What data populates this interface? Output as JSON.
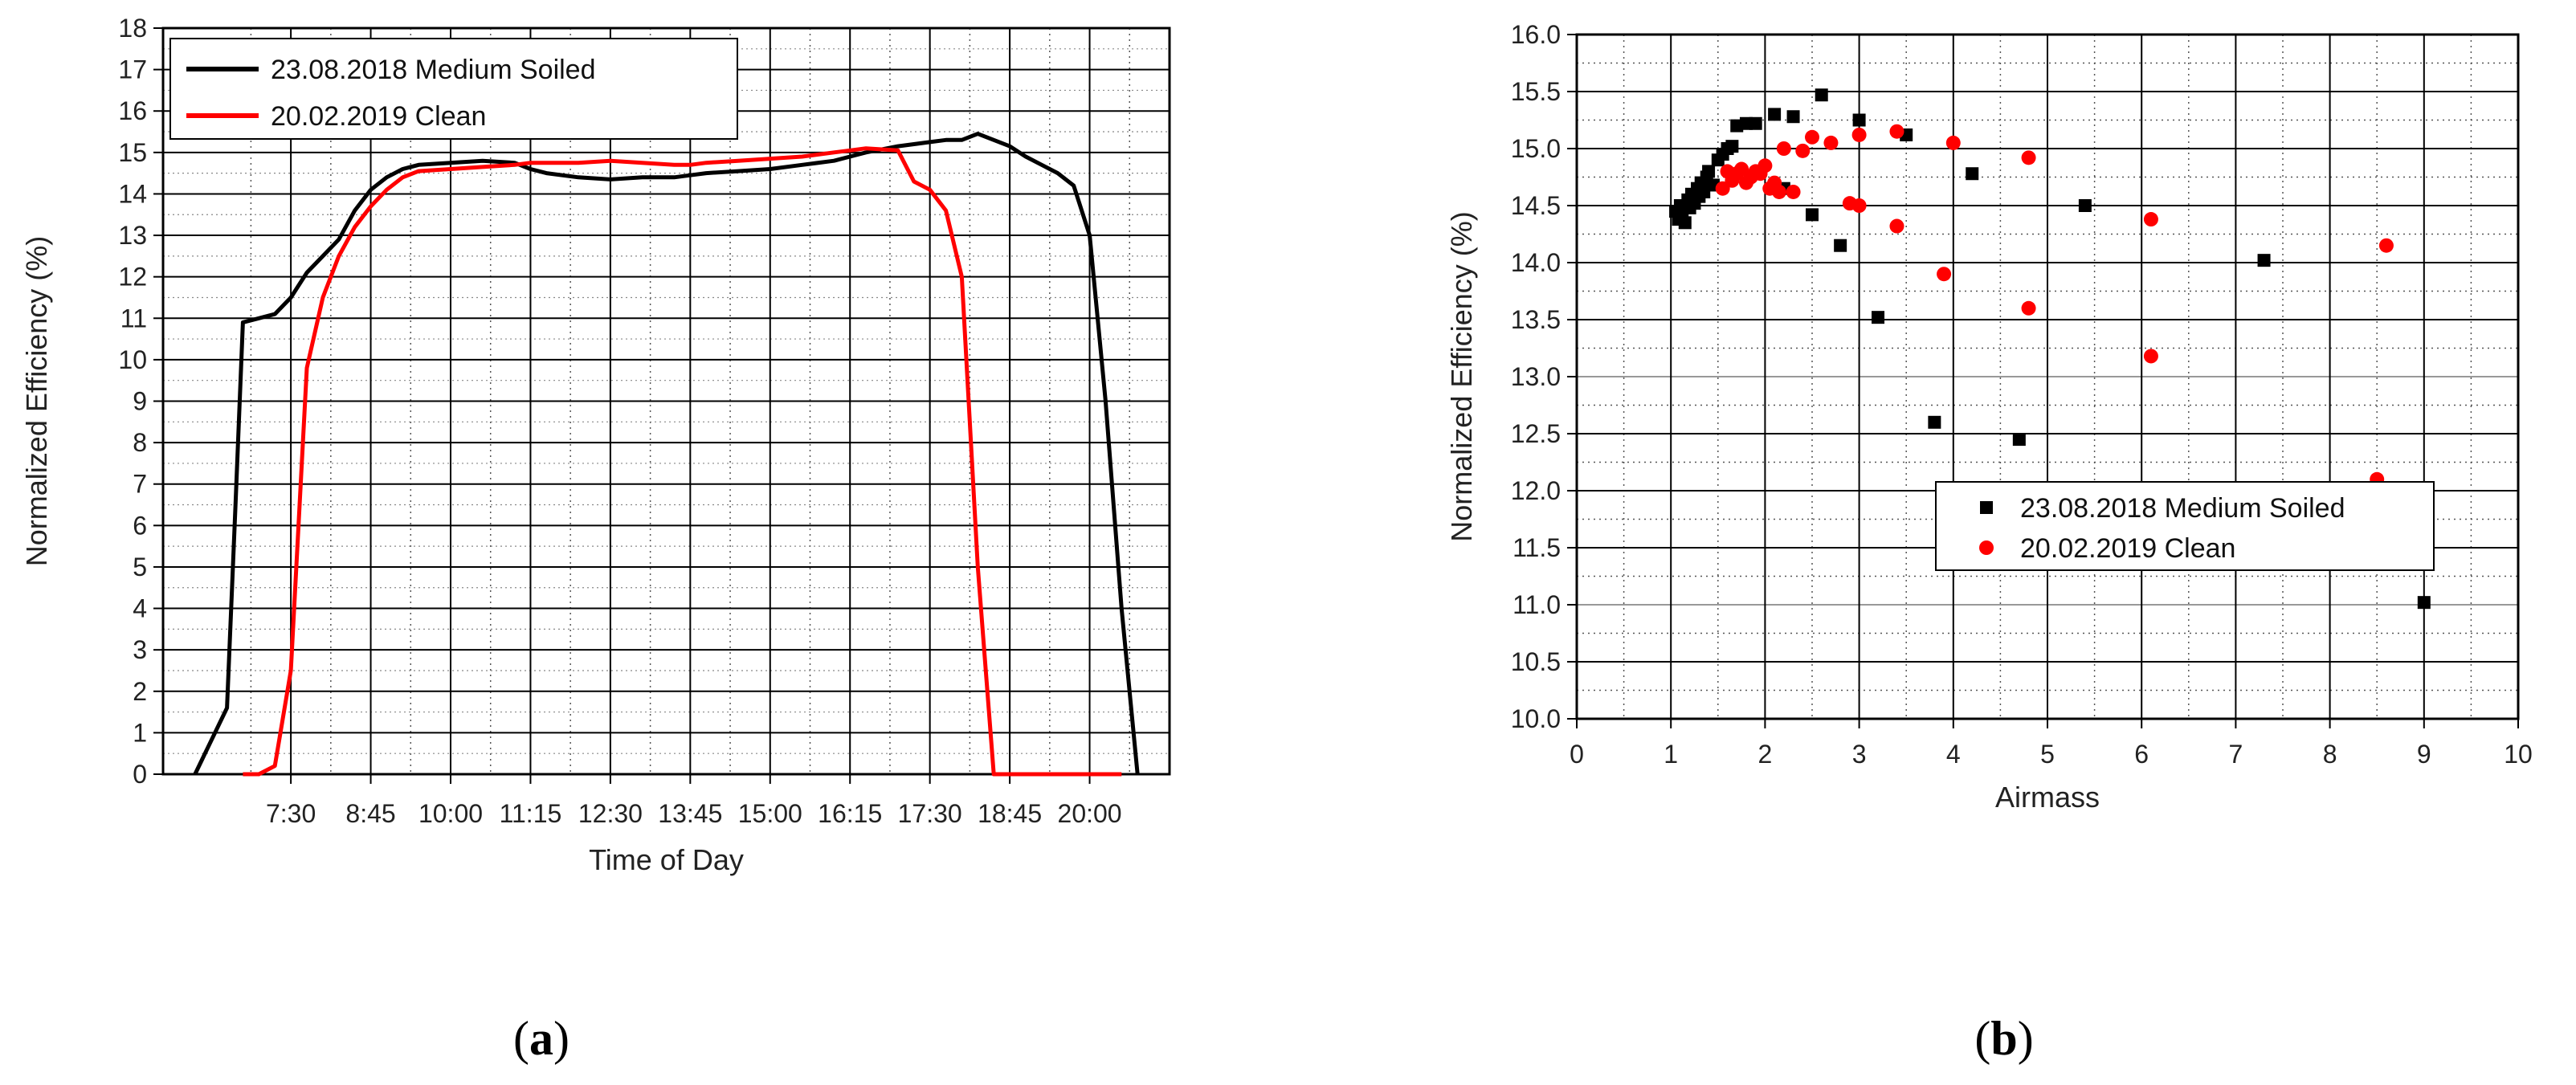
{
  "chart_data": [
    {
      "type": "line",
      "panel_label": "a",
      "xlabel": "Time of Day",
      "ylabel": "Normalized Efficiency (%)",
      "xlim": [
        "5:30",
        "21:15"
      ],
      "ylim": [
        0,
        18
      ],
      "x_ticks": [
        "7:30",
        "8:45",
        "10:00",
        "11:15",
        "12:30",
        "13:45",
        "15:00",
        "16:15",
        "17:30",
        "18:45",
        "20:00"
      ],
      "y_ticks": [
        "0",
        "1",
        "2",
        "3",
        "4",
        "5",
        "6",
        "7",
        "8",
        "9",
        "10",
        "11",
        "12",
        "13",
        "14",
        "15",
        "16",
        "17",
        "18"
      ],
      "grid": true,
      "legend_position": "top-left",
      "series": [
        {
          "name": "23.08.2018 Medium Soiled",
          "color": "#000000",
          "x": [
            "6:00",
            "6:15",
            "6:30",
            "6:38",
            "6:45",
            "7:00",
            "7:15",
            "7:30",
            "7:45",
            "8:00",
            "8:15",
            "8:30",
            "8:45",
            "9:00",
            "9:15",
            "9:30",
            "10:00",
            "10:30",
            "11:00",
            "11:15",
            "11:30",
            "12:00",
            "12:30",
            "13:00",
            "13:30",
            "13:45",
            "14:00",
            "14:30",
            "15:00",
            "15:30",
            "16:00",
            "16:15",
            "16:30",
            "17:00",
            "17:30",
            "17:45",
            "18:00",
            "18:15",
            "18:30",
            "18:45",
            "19:00",
            "19:15",
            "19:30",
            "19:45",
            "20:00",
            "20:15",
            "20:30",
            "20:45"
          ],
          "values": [
            0,
            0.8,
            1.6,
            6.5,
            10.9,
            11.0,
            11.1,
            11.5,
            12.1,
            12.5,
            12.9,
            13.6,
            14.1,
            14.4,
            14.6,
            14.7,
            14.75,
            14.8,
            14.75,
            14.6,
            14.5,
            14.4,
            14.35,
            14.4,
            14.4,
            14.45,
            14.5,
            14.55,
            14.6,
            14.7,
            14.8,
            14.9,
            15.0,
            15.15,
            15.25,
            15.3,
            15.3,
            15.45,
            15.3,
            15.15,
            14.9,
            14.7,
            14.5,
            14.2,
            13.0,
            9.0,
            4.0,
            0
          ]
        },
        {
          "name": "20.02.2019 Clean",
          "color": "#ff0000",
          "x": [
            "6:45",
            "7:00",
            "7:15",
            "7:30",
            "7:45",
            "8:00",
            "8:15",
            "8:30",
            "8:45",
            "9:00",
            "9:15",
            "9:30",
            "10:00",
            "10:30",
            "11:00",
            "11:15",
            "11:30",
            "12:00",
            "12:30",
            "13:00",
            "13:30",
            "13:45",
            "14:00",
            "14:30",
            "15:00",
            "15:30",
            "16:00",
            "16:15",
            "16:30",
            "17:00",
            "17:15",
            "17:30",
            "17:45",
            "18:00",
            "18:15",
            "18:30",
            "18:40",
            "19:00",
            "19:30",
            "20:00",
            "20:30"
          ],
          "values": [
            0,
            0,
            0.2,
            2.5,
            9.8,
            11.5,
            12.5,
            13.2,
            13.7,
            14.1,
            14.4,
            14.55,
            14.6,
            14.65,
            14.7,
            14.75,
            14.75,
            14.75,
            14.8,
            14.75,
            14.7,
            14.7,
            14.75,
            14.8,
            14.85,
            14.9,
            15.0,
            15.05,
            15.1,
            15.05,
            14.3,
            14.1,
            13.6,
            12.0,
            5.0,
            0,
            0,
            0,
            0,
            0,
            0
          ]
        }
      ]
    },
    {
      "type": "scatter",
      "panel_label": "b",
      "xlabel": "Airmass",
      "ylabel": "Normalized Efficiency (%)",
      "xlim": [
        0,
        10
      ],
      "ylim": [
        10.0,
        16.0
      ],
      "x_ticks": [
        "0",
        "1",
        "2",
        "3",
        "4",
        "5",
        "6",
        "7",
        "8",
        "9",
        "10"
      ],
      "y_ticks": [
        "10.0",
        "10.5",
        "11.0",
        "11.5",
        "12.0",
        "12.5",
        "13.0",
        "13.5",
        "14.0",
        "14.5",
        "15.0",
        "15.5",
        "16.0"
      ],
      "grid": true,
      "legend_position": "bottom-right",
      "series": [
        {
          "name": "23.08.2018 Medium Soiled",
          "color": "#000000",
          "marker": "square",
          "x": [
            1.05,
            1.08,
            1.1,
            1.12,
            1.15,
            1.18,
            1.2,
            1.22,
            1.25,
            1.28,
            1.3,
            1.32,
            1.35,
            1.38,
            1.4,
            1.45,
            1.5,
            1.55,
            1.6,
            1.65,
            1.7,
            1.8,
            1.9,
            2.1,
            2.3,
            2.6,
            3.0,
            3.5,
            4.2,
            5.4,
            2.2,
            2.5,
            2.8,
            3.2,
            3.8,
            4.7,
            7.3,
            9.0
          ],
          "values": [
            14.45,
            14.38,
            14.5,
            14.42,
            14.35,
            14.55,
            14.48,
            14.6,
            14.52,
            14.65,
            14.58,
            14.7,
            14.62,
            14.75,
            14.8,
            14.68,
            14.9,
            14.95,
            15.0,
            15.02,
            15.2,
            15.22,
            15.22,
            15.3,
            15.28,
            15.47,
            15.25,
            15.12,
            14.78,
            14.5,
            14.65,
            14.42,
            14.15,
            13.52,
            12.6,
            12.45,
            14.02,
            11.02
          ]
        },
        {
          "name": "20.02.2019 Clean",
          "color": "#ff0000",
          "marker": "circle",
          "x": [
            1.55,
            1.6,
            1.65,
            1.7,
            1.75,
            1.8,
            1.85,
            1.9,
            1.95,
            2.0,
            2.05,
            2.1,
            2.15,
            2.2,
            2.3,
            2.4,
            2.5,
            2.7,
            2.9,
            3.0,
            3.4,
            3.0,
            3.4,
            3.9,
            4.0,
            4.8,
            4.8,
            6.1,
            6.1,
            8.6,
            8.5
          ],
          "values": [
            14.65,
            14.8,
            14.72,
            14.78,
            14.82,
            14.7,
            14.75,
            14.8,
            14.78,
            14.85,
            14.65,
            14.7,
            14.62,
            15.0,
            14.62,
            14.98,
            15.1,
            15.05,
            14.52,
            15.12,
            15.15,
            14.5,
            14.32,
            13.9,
            15.05,
            14.92,
            13.6,
            14.38,
            13.18,
            14.15,
            12.1
          ]
        }
      ]
    }
  ]
}
